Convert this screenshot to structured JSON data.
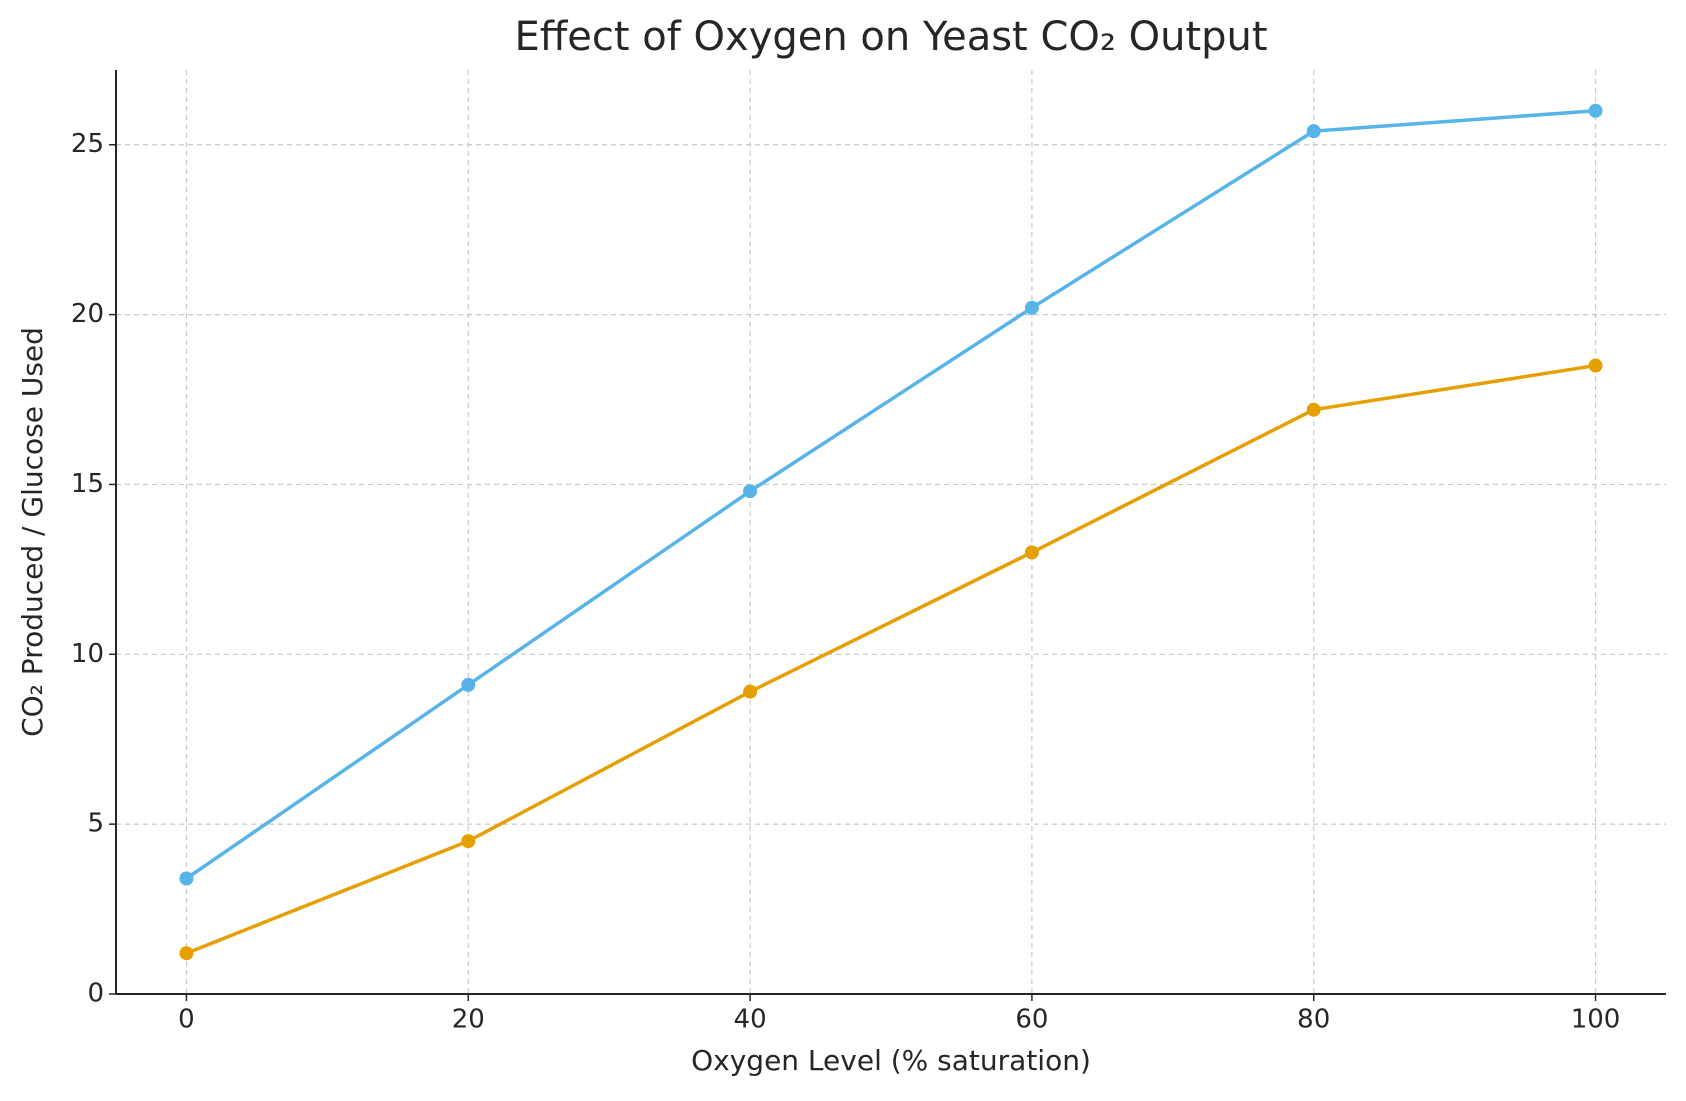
{
  "chart_data": {
    "type": "line",
    "title": "Effect of Oxygen on Yeast CO₂ Output",
    "x_label": "Oxygen Level (% saturation)",
    "y_label": "CO₂ Produced / Glucose Used",
    "x": [
      0,
      20,
      40,
      60,
      80,
      100
    ],
    "series": [
      {
        "color": "#56b4e9",
        "values": [
          3.4,
          9.1,
          14.8,
          20.2,
          25.4,
          26.0
        ]
      },
      {
        "color": "#e69f00",
        "values": [
          1.2,
          4.5,
          8.9,
          13.0,
          17.2,
          18.5
        ]
      }
    ],
    "xlim": [
      -5,
      105
    ],
    "xticks": [
      0,
      20,
      40,
      60,
      80,
      100
    ],
    "ylim": [
      0,
      27.2
    ],
    "yticks": [
      0,
      5,
      10,
      15,
      20,
      25
    ],
    "grid": true
  }
}
